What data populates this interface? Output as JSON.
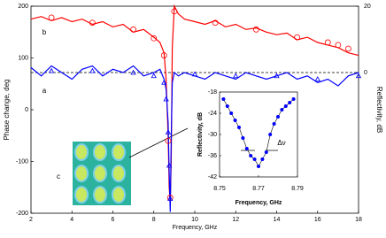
{
  "chart_data": [
    {
      "type": "line",
      "xlabel": "Frequency, GHz",
      "ylabel": "Phase change, deg",
      "y2label": "Reflectivity, dB",
      "xlim": [
        2,
        18
      ],
      "xticks": [
        2,
        4,
        6,
        8,
        10,
        12,
        14,
        16,
        18
      ],
      "ylim": [
        -200,
        200
      ],
      "yticks": [
        -200,
        -100,
        0,
        100,
        200
      ],
      "y2lim": [
        -42.4,
        20
      ],
      "y2ticks": [
        0,
        20
      ],
      "annotations": [
        "a",
        "b",
        "c"
      ],
      "reference_line": {
        "axis": "y2",
        "value": 0,
        "style": "dashed",
        "color": "#000000"
      },
      "x": [
        2,
        2.5,
        3,
        3.5,
        4,
        4.5,
        5,
        5.5,
        6,
        6.5,
        7,
        7.5,
        8,
        8.3,
        8.5,
        8.6,
        8.7,
        8.75,
        8.8,
        8.85,
        8.9,
        9,
        9.2,
        9.5,
        10,
        10.5,
        11,
        11.5,
        12,
        12.5,
        13,
        13.5,
        14,
        14.5,
        15,
        15.5,
        16,
        16.5,
        17,
        17.5,
        18
      ],
      "series": [
        {
          "color": "#ff0000",
          "marker": "line",
          "axis": "y",
          "values": [
            175,
            180,
            172,
            178,
            170,
            175,
            165,
            170,
            160,
            165,
            150,
            155,
            140,
            130,
            110,
            60,
            -50,
            -150,
            -180,
            -100,
            120,
            200,
            185,
            175,
            170,
            165,
            172,
            160,
            165,
            155,
            158,
            150,
            145,
            148,
            135,
            140,
            130,
            125,
            120,
            110,
            105
          ]
        },
        {
          "color": "#0000ff",
          "marker": "line",
          "axis": "y2",
          "values": [
            1.5,
            -1,
            2,
            0,
            -2,
            1,
            2,
            -1,
            1,
            0,
            2,
            -1,
            0,
            1,
            -2,
            -5,
            -15,
            -30,
            -42,
            -20,
            -3,
            0,
            -1,
            0,
            -1,
            -2,
            0,
            -1,
            -2,
            0,
            -1,
            -2,
            -1,
            0,
            -2,
            -1,
            -3,
            -2,
            -4,
            -1,
            0
          ]
        },
        {
          "color": "#ff0000",
          "marker": "circle",
          "axis": "y",
          "x": [
            3,
            5,
            7,
            8,
            8.5,
            8.7,
            8.8,
            9,
            11,
            13,
            15,
            16.5,
            17,
            17.5
          ],
          "values": [
            178,
            168,
            155,
            138,
            105,
            -60,
            -170,
            190,
            168,
            155,
            140,
            130,
            125,
            118
          ]
        },
        {
          "color": "#0000ff",
          "marker": "triangle",
          "axis": "y2",
          "x": [
            3,
            5,
            7,
            8,
            8.5,
            8.6,
            8.7,
            8.75,
            8.8,
            10,
            12,
            14,
            16,
            18
          ],
          "values": [
            0.5,
            0.5,
            0,
            -1,
            -3,
            -8,
            -18,
            -28,
            -38,
            -0.5,
            -1,
            -1,
            -2,
            -1
          ]
        }
      ]
    },
    {
      "type": "scatter",
      "xlabel": "Frequency, GHz",
      "ylabel": "Reflectivity, dB",
      "annotation": "Δν",
      "xlim": [
        8.75,
        8.79
      ],
      "xticks": [
        8.75,
        8.77,
        8.79
      ],
      "ylim": [
        -42,
        -18
      ],
      "yticks": [
        -18,
        -24,
        -30,
        -36,
        -42
      ],
      "color": "#0000ff",
      "x": [
        8.752,
        8.754,
        8.756,
        8.758,
        8.76,
        8.762,
        8.764,
        8.766,
        8.768,
        8.77,
        8.772,
        8.774,
        8.776,
        8.778,
        8.78,
        8.782,
        8.784,
        8.786,
        8.788
      ],
      "values": [
        -20,
        -22,
        -24,
        -26,
        -28,
        -31,
        -34,
        -36,
        -37,
        -39,
        -37,
        -35,
        -30,
        -27,
        -25,
        -23,
        -22,
        -21,
        -20
      ]
    }
  ]
}
